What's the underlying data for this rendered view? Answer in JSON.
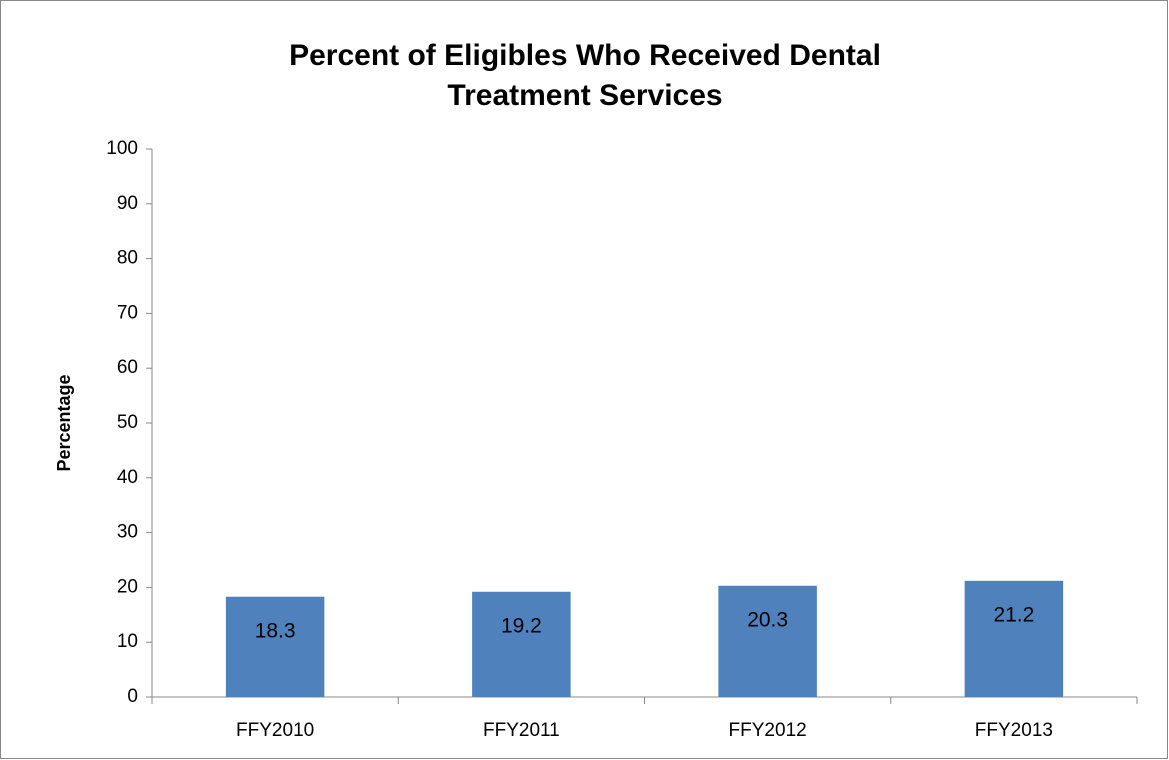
{
  "chart_data": {
    "type": "bar",
    "title": "Percent of Eligibles Who Received Dental Treatment Services",
    "y_label": "Percentage",
    "categories": [
      "FFY2010",
      "FFY2011",
      "FFY2012",
      "FFY2013"
    ],
    "values": [
      18.3,
      19.2,
      20.3,
      21.2
    ],
    "color": "#4f81bd",
    "ylim": [
      0,
      100
    ],
    "yticks": [
      0,
      10,
      20,
      30,
      40,
      50,
      60,
      70,
      80,
      90,
      100
    ],
    "grid": false
  }
}
